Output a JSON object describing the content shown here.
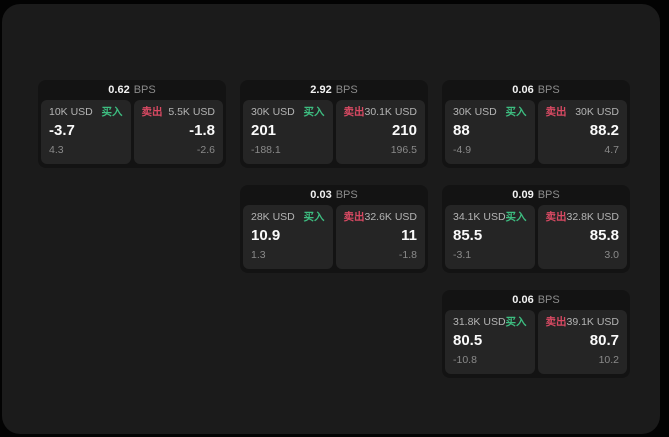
{
  "labels": {
    "bps": "BPS",
    "buy": "买入",
    "sell": "卖出"
  },
  "colors": {
    "background": "#030303",
    "panel_bg": "#1b1b1b",
    "card_bg": "#131313",
    "tile_bg": "#252525",
    "buy_green": "#3dbd80",
    "sell_red": "#d94a63",
    "text_primary": "#fafafa",
    "text_secondary": "#8a8a8a"
  },
  "cards": [
    {
      "row": 1,
      "col": 1,
      "spread": "0.62",
      "buy": {
        "size": "10K USD",
        "price": "-3.7",
        "delta": "4.3"
      },
      "sell": {
        "size": "5.5K USD",
        "price": "-1.8",
        "delta": "-2.6"
      }
    },
    {
      "row": 1,
      "col": 2,
      "spread": "2.92",
      "buy": {
        "size": "30K USD",
        "price": "201",
        "delta": "-188.1"
      },
      "sell": {
        "size": "30.1K USD",
        "price": "210",
        "delta": "196.5"
      }
    },
    {
      "row": 1,
      "col": 3,
      "spread": "0.06",
      "buy": {
        "size": "30K USD",
        "price": "88",
        "delta": "-4.9"
      },
      "sell": {
        "size": "30K USD",
        "price": "88.2",
        "delta": "4.7"
      }
    },
    {
      "row": 2,
      "col": 2,
      "spread": "0.03",
      "buy": {
        "size": "28K USD",
        "price": "10.9",
        "delta": "1.3"
      },
      "sell": {
        "size": "32.6K USD",
        "price": "11",
        "delta": "-1.8"
      }
    },
    {
      "row": 2,
      "col": 3,
      "spread": "0.09",
      "buy": {
        "size": "34.1K USD",
        "price": "85.5",
        "delta": "-3.1"
      },
      "sell": {
        "size": "32.8K USD",
        "price": "85.8",
        "delta": "3.0"
      }
    },
    {
      "row": 3,
      "col": 3,
      "spread": "0.06",
      "buy": {
        "size": "31.8K USD",
        "price": "80.5",
        "delta": "-10.8"
      },
      "sell": {
        "size": "39.1K USD",
        "price": "80.7",
        "delta": "10.2"
      }
    }
  ]
}
